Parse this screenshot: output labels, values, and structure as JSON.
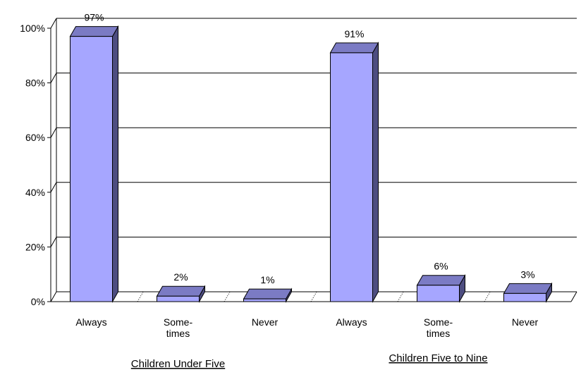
{
  "chart_data": {
    "type": "bar",
    "title": "",
    "xlabel": "",
    "ylabel": "",
    "ylim": [
      0,
      100
    ],
    "yticks": [
      "0%",
      "20%",
      "40%",
      "60%",
      "80%",
      "100%"
    ],
    "grid": true,
    "three_d": true,
    "bar_color": "#a6a6ff",
    "bar_side_color": "#4d4d80",
    "bar_top_color": "#7b7bc4",
    "groups": [
      {
        "label": "Children Under Five",
        "categories": [
          {
            "label": [
              "Always"
            ],
            "value": 97,
            "value_label": "97%"
          },
          {
            "label": [
              "Some-",
              "times"
            ],
            "value": 2,
            "value_label": "2%"
          },
          {
            "label": [
              "Never"
            ],
            "value": 1,
            "value_label": "1%"
          }
        ]
      },
      {
        "label": "Children Five to Nine",
        "categories": [
          {
            "label": [
              "Always"
            ],
            "value": 91,
            "value_label": "91%"
          },
          {
            "label": [
              "Some-",
              "times"
            ],
            "value": 6,
            "value_label": "6%"
          },
          {
            "label": [
              "Never"
            ],
            "value": 3,
            "value_label": "3%"
          }
        ]
      }
    ]
  }
}
